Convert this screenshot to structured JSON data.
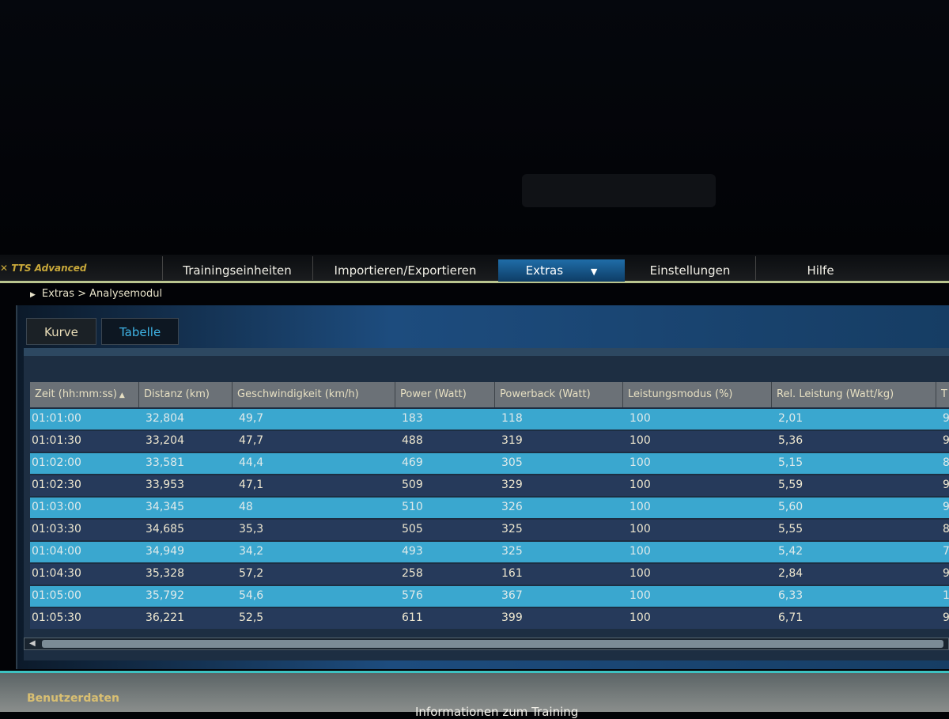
{
  "app": {
    "title": "TTS Advanced"
  },
  "menu": [
    "Trainingseinheiten",
    "Importieren/Exportieren",
    "Extras",
    "Einstellungen",
    "Hilfe"
  ],
  "breadcrumb": "Extras > Analysemodul",
  "tabs": [
    "Kurve",
    "Tabelle"
  ],
  "active_tab": "Tabelle",
  "table": {
    "columns": [
      "Zeit (hh:mm:ss)",
      "Distanz (km)",
      "Geschwindigkeit (km/h)",
      "Power (Watt)",
      "Powerback (Watt)",
      "Leistungsmodus (%)",
      "Rel. Leistung (Watt/kg)",
      "T"
    ],
    "sort_column": "Zeit (hh:mm:ss)",
    "rows": [
      [
        "01:01:00",
        "32,804",
        "49,7",
        "183",
        "118",
        "100",
        "2,01",
        "9"
      ],
      [
        "01:01:30",
        "33,204",
        "47,7",
        "488",
        "319",
        "100",
        "5,36",
        "9"
      ],
      [
        "01:02:00",
        "33,581",
        "44,4",
        "469",
        "305",
        "100",
        "5,15",
        "8"
      ],
      [
        "01:02:30",
        "33,953",
        "47,1",
        "509",
        "329",
        "100",
        "5,59",
        "9"
      ],
      [
        "01:03:00",
        "34,345",
        "48",
        "510",
        "326",
        "100",
        "5,60",
        "9"
      ],
      [
        "01:03:30",
        "34,685",
        "35,3",
        "505",
        "325",
        "100",
        "5,55",
        "8"
      ],
      [
        "01:04:00",
        "34,949",
        "34,2",
        "493",
        "325",
        "100",
        "5,42",
        "7"
      ],
      [
        "01:04:30",
        "35,328",
        "57,2",
        "258",
        "161",
        "100",
        "2,84",
        "9"
      ],
      [
        "01:05:00",
        "35,792",
        "54,6",
        "576",
        "367",
        "100",
        "6,33",
        "1"
      ],
      [
        "01:05:30",
        "36,221",
        "52,5",
        "611",
        "399",
        "100",
        "6,71",
        "9"
      ]
    ]
  },
  "bottom": {
    "panel1": "Benutzerdaten",
    "panel2": "Informationen zum Training"
  },
  "colors": {
    "accent": "#3fb4e6",
    "row_light": "#3aa7cf",
    "row_dark": "#263a5b"
  }
}
